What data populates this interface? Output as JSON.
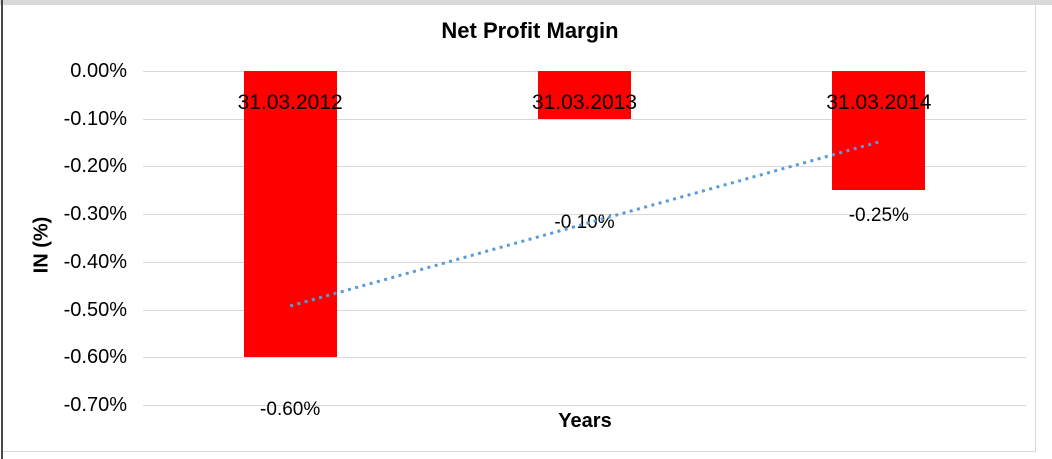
{
  "colors": {
    "bar": "#ff0000",
    "trendline": "#5b9bd5",
    "gridline": "#d9d9d9",
    "text": "#000000"
  },
  "chart_data": {
    "type": "bar",
    "title": "Net Profit Margin",
    "xlabel": "Years",
    "ylabel": "IN (%)",
    "categories": [
      "31.03.2012",
      "31.03.2013",
      "31.03.2014"
    ],
    "values": [
      -0.6,
      -0.1,
      -0.25
    ],
    "value_labels": [
      "-0.60%",
      "-0.10%",
      "-0.25%"
    ],
    "y_ticks": [
      "0.00%",
      "-0.10%",
      "-0.20%",
      "-0.30%",
      "-0.40%",
      "-0.50%",
      "-0.60%",
      "-0.70%"
    ],
    "y_tick_values": [
      0.0,
      -0.1,
      -0.2,
      -0.3,
      -0.4,
      -0.5,
      -0.6,
      -0.7
    ],
    "ylim": [
      -0.7,
      0.0
    ],
    "grid": true,
    "legend_position": "none",
    "bar_color_name": "red",
    "series": [
      {
        "name": "Net Profit Margin",
        "type": "bar",
        "values": [
          -0.6,
          -0.1,
          -0.25
        ]
      },
      {
        "name": "Linear trendline",
        "type": "dotted-line",
        "values": [
          -0.49,
          -0.32,
          -0.15
        ]
      }
    ],
    "trendline": {
      "style": "dotted",
      "start_value": -0.4925,
      "end_value": -0.1488
    }
  }
}
